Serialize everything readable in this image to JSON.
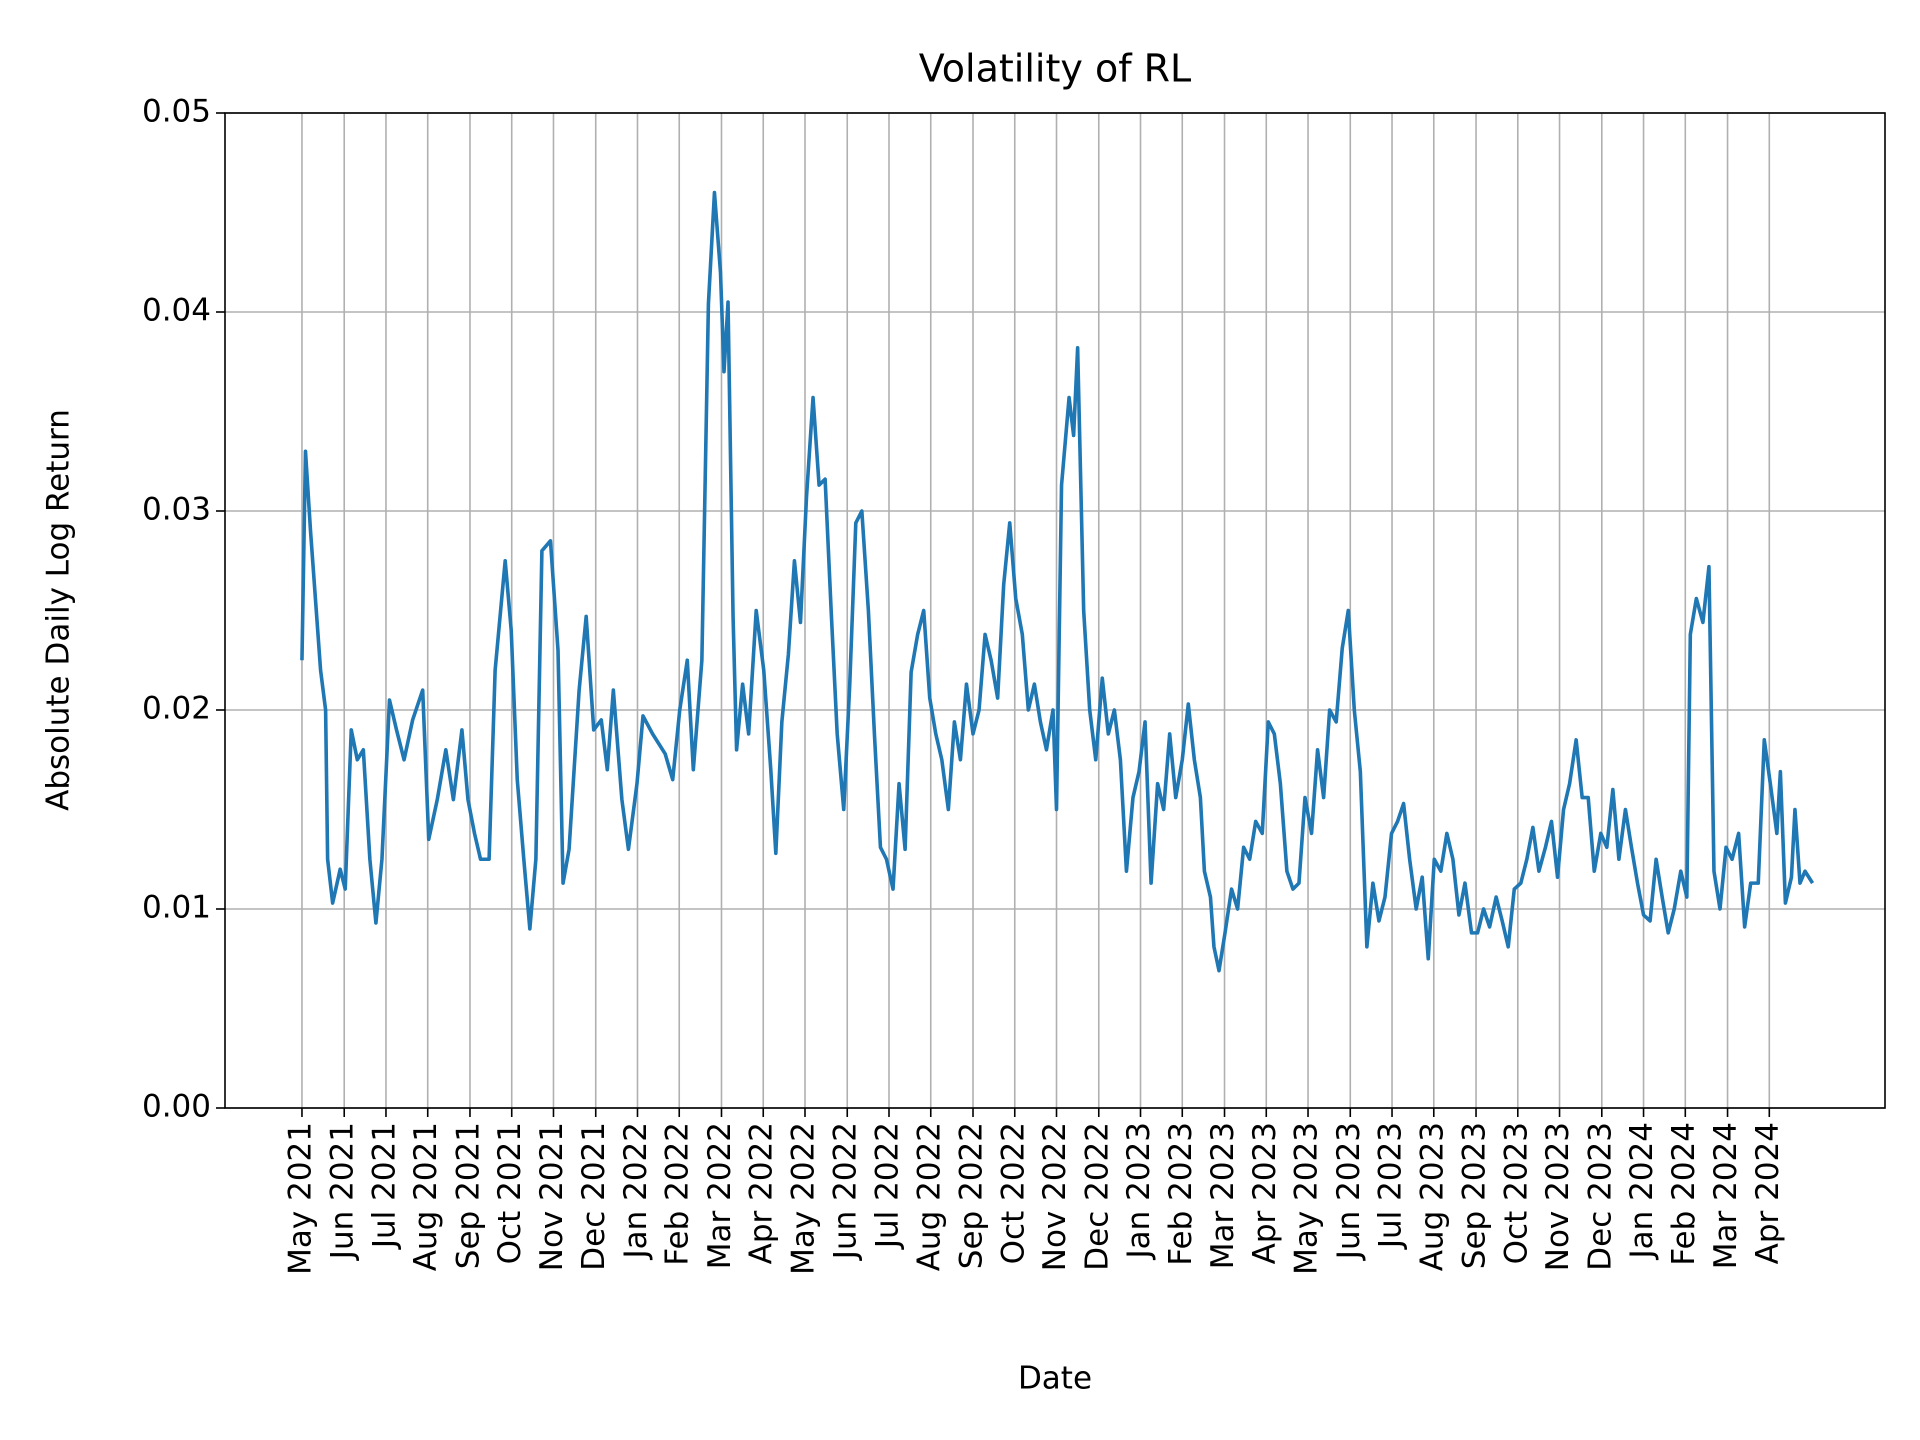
{
  "chart_data": {
    "type": "line",
    "title": "Volatility of RL",
    "xlabel": "Date",
    "ylabel": "Absolute Daily Log Return",
    "color": "#1f77b4",
    "grid": true,
    "xlim": [
      2021.18,
      2024.48
    ],
    "ylim": [
      0,
      0.05
    ],
    "yticks": [
      {
        "value": 0,
        "label": "0.00"
      },
      0.01,
      0.02,
      0.03,
      0.04,
      0.05
    ],
    "xticks": [
      {
        "value": 2021.333,
        "label": "May 2021"
      },
      {
        "value": 2021.417,
        "label": "Jun 2021"
      },
      {
        "value": 2021.5,
        "label": "Jul 2021"
      },
      {
        "value": 2021.583,
        "label": "Aug 2021"
      },
      {
        "value": 2021.667,
        "label": "Sep 2021"
      },
      {
        "value": 2021.75,
        "label": "Oct 2021"
      },
      {
        "value": 2021.833,
        "label": "Nov 2021"
      },
      {
        "value": 2021.917,
        "label": "Dec 2021"
      },
      {
        "value": 2022,
        "label": "Jan 2022"
      },
      {
        "value": 2022.083,
        "label": "Feb 2022"
      },
      {
        "value": 2022.167,
        "label": "Mar 2022"
      },
      {
        "value": 2022.25,
        "label": "Apr 2022"
      },
      {
        "value": 2022.333,
        "label": "May 2022"
      },
      {
        "value": 2022.417,
        "label": "Jun 2022"
      },
      {
        "value": 2022.5,
        "label": "Jul 2022"
      },
      {
        "value": 2022.583,
        "label": "Aug 2022"
      },
      {
        "value": 2022.667,
        "label": "Sep 2022"
      },
      {
        "value": 2022.75,
        "label": "Oct 2022"
      },
      {
        "value": 2022.833,
        "label": "Nov 2022"
      },
      {
        "value": 2022.917,
        "label": "Dec 2022"
      },
      {
        "value": 2023,
        "label": "Jan 2023"
      },
      {
        "value": 2023.083,
        "label": "Feb 2023"
      },
      {
        "value": 2023.167,
        "label": "Mar 2023"
      },
      {
        "value": 2023.25,
        "label": "Apr 2023"
      },
      {
        "value": 2023.333,
        "label": "May 2023"
      },
      {
        "value": 2023.417,
        "label": "Jun 2023"
      },
      {
        "value": 2023.5,
        "label": "Jul 2023"
      },
      {
        "value": 2023.583,
        "label": "Aug 2023"
      },
      {
        "value": 2023.667,
        "label": "Sep 2023"
      },
      {
        "value": 2023.75,
        "label": "Oct 2023"
      },
      {
        "value": 2023.833,
        "label": "Nov 2023"
      },
      {
        "value": 2023.917,
        "label": "Dec 2023"
      },
      {
        "value": 2024,
        "label": "Jan 2024"
      },
      {
        "value": 2024.083,
        "label": "Feb 2024"
      },
      {
        "value": 2024.167,
        "label": "Mar 2024"
      },
      {
        "value": 2024.25,
        "label": "Apr 2024"
      }
    ],
    "x": [
      2021.333,
      2021.34,
      2021.35,
      2021.36,
      2021.37,
      2021.38,
      2021.384,
      2021.394,
      2021.409,
      2021.419,
      2021.431,
      2021.443,
      2021.455,
      2021.468,
      2021.48,
      2021.492,
      2021.507,
      2021.521,
      2021.536,
      2021.553,
      2021.573,
      2021.585,
      2021.602,
      2021.619,
      2021.634,
      2021.651,
      2021.663,
      2021.676,
      2021.688,
      2021.705,
      2021.717,
      2021.737,
      2021.749,
      2021.761,
      2021.774,
      2021.786,
      2021.798,
      2021.81,
      2021.827,
      2021.842,
      2021.852,
      2021.864,
      2021.884,
      2021.898,
      2021.913,
      2021.928,
      2021.94,
      2021.952,
      2021.969,
      2021.982,
      2021.999,
      2022.011,
      2022.03,
      2022.055,
      2022.07,
      2022.084,
      2022.099,
      2022.111,
      2022.128,
      2022.141,
      2022.153,
      2022.165,
      2022.172,
      2022.18,
      2022.19,
      2022.197,
      2022.209,
      2022.221,
      2022.236,
      2022.251,
      2022.265,
      2022.275,
      2022.287,
      2022.3,
      2022.312,
      2022.324,
      2022.336,
      2022.349,
      2022.361,
      2022.373,
      2022.385,
      2022.397,
      2022.41,
      2022.422,
      2022.434,
      2022.446,
      2022.459,
      2022.471,
      2022.483,
      2022.495,
      2022.508,
      2022.52,
      2022.532,
      2022.544,
      2022.557,
      2022.569,
      2022.581,
      2022.593,
      2022.605,
      2022.618,
      2022.63,
      2022.642,
      2022.654,
      2022.667,
      2022.679,
      2022.691,
      2022.703,
      2022.716,
      2022.728,
      2022.74,
      2022.752,
      2022.765,
      2022.777,
      2022.789,
      2022.801,
      2022.813,
      2022.826,
      2022.833,
      2022.843,
      2022.858,
      2022.867,
      2022.875,
      2022.887,
      2022.899,
      2022.911,
      2022.924,
      2022.936,
      2022.948,
      2022.96,
      2022.972,
      2022.985,
      2022.997,
      2023.009,
      2023.021,
      2023.034,
      2023.046,
      2023.058,
      2023.07,
      2023.083,
      2023.095,
      2023.107,
      2023.119,
      2023.127,
      2023.139,
      2023.146,
      2023.156,
      2023.168,
      2023.181,
      2023.193,
      2023.205,
      2023.217,
      2023.229,
      2023.242,
      2023.254,
      2023.266,
      2023.278,
      2023.291,
      2023.303,
      2023.315,
      2023.327,
      2023.34,
      2023.352,
      2023.364,
      2023.376,
      2023.389,
      2023.401,
      2023.413,
      2023.425,
      2023.437,
      2023.45,
      2023.462,
      2023.474,
      2023.486,
      2023.499,
      2023.511,
      2023.523,
      2023.535,
      2023.548,
      2023.56,
      2023.572,
      2023.584,
      2023.597,
      2023.609,
      2023.621,
      2023.633,
      2023.645,
      2023.658,
      2023.67,
      2023.682,
      2023.694,
      2023.707,
      2023.719,
      2023.731,
      2023.743,
      2023.756,
      2023.768,
      2023.78,
      2023.792,
      2023.805,
      2023.817,
      2023.829,
      2023.841,
      2023.853,
      2023.866,
      2023.878,
      2023.89,
      2023.902,
      2023.915,
      2023.927,
      2023.939,
      2023.951,
      2023.964,
      2023.976,
      2023.988,
      2024.0,
      2024.013,
      2024.025,
      2024.037,
      2024.049,
      2024.061,
      2024.074,
      2024.086,
      2024.093,
      2024.105,
      2024.118,
      2024.13,
      2024.14,
      2024.152,
      2024.164,
      2024.176,
      2024.189,
      2024.201,
      2024.213,
      2024.228,
      2024.24,
      2024.252,
      2024.265,
      2024.272,
      2024.282,
      2024.294,
      2024.301,
      2024.311,
      2024.321,
      2024.336
    ],
    "values": [
      0.0225,
      0.033,
      0.029,
      0.0255,
      0.022,
      0.02,
      0.0125,
      0.0103,
      0.012,
      0.011,
      0.019,
      0.0175,
      0.018,
      0.0125,
      0.0093,
      0.0125,
      0.0205,
      0.019,
      0.0175,
      0.0195,
      0.021,
      0.0135,
      0.0155,
      0.018,
      0.0155,
      0.019,
      0.0155,
      0.0138,
      0.0125,
      0.0125,
      0.022,
      0.0275,
      0.024,
      0.0165,
      0.0125,
      0.009,
      0.0125,
      0.028,
      0.0285,
      0.023,
      0.0113,
      0.013,
      0.021,
      0.0247,
      0.019,
      0.0195,
      0.017,
      0.021,
      0.0155,
      0.013,
      0.0163,
      0.0197,
      0.0188,
      0.0178,
      0.0165,
      0.02,
      0.0225,
      0.017,
      0.0225,
      0.0404,
      0.046,
      0.042,
      0.037,
      0.0405,
      0.0247,
      0.018,
      0.0213,
      0.0188,
      0.025,
      0.022,
      0.017,
      0.0128,
      0.0194,
      0.0228,
      0.0275,
      0.0244,
      0.0307,
      0.0357,
      0.0313,
      0.0316,
      0.025,
      0.0188,
      0.015,
      0.0213,
      0.0294,
      0.03,
      0.025,
      0.0188,
      0.0131,
      0.0125,
      0.011,
      0.0163,
      0.013,
      0.0219,
      0.0238,
      0.025,
      0.0206,
      0.0188,
      0.0175,
      0.015,
      0.0194,
      0.0175,
      0.0213,
      0.0188,
      0.02,
      0.0238,
      0.0225,
      0.0206,
      0.0263,
      0.0294,
      0.0256,
      0.0238,
      0.02,
      0.0213,
      0.0194,
      0.018,
      0.02,
      0.015,
      0.0313,
      0.0357,
      0.0338,
      0.0382,
      0.025,
      0.02,
      0.0175,
      0.0216,
      0.0188,
      0.02,
      0.0175,
      0.0119,
      0.0156,
      0.0169,
      0.0194,
      0.0113,
      0.0163,
      0.015,
      0.0188,
      0.0156,
      0.0175,
      0.0203,
      0.0175,
      0.0156,
      0.0119,
      0.0106,
      0.0081,
      0.0069,
      0.0088,
      0.011,
      0.01,
      0.0131,
      0.0125,
      0.0144,
      0.0138,
      0.0194,
      0.0188,
      0.0163,
      0.0119,
      0.011,
      0.0113,
      0.0156,
      0.0138,
      0.018,
      0.0156,
      0.02,
      0.0194,
      0.0231,
      0.025,
      0.02,
      0.0169,
      0.0081,
      0.0113,
      0.0094,
      0.0106,
      0.0138,
      0.0144,
      0.0153,
      0.0125,
      0.01,
      0.0116,
      0.0075,
      0.0125,
      0.0119,
      0.0138,
      0.0125,
      0.0097,
      0.0113,
      0.0088,
      0.0088,
      0.01,
      0.0091,
      0.0106,
      0.0094,
      0.0081,
      0.011,
      0.0113,
      0.0125,
      0.0141,
      0.0119,
      0.0131,
      0.0144,
      0.0116,
      0.015,
      0.0163,
      0.0185,
      0.0156,
      0.0156,
      0.0119,
      0.0138,
      0.0131,
      0.016,
      0.0125,
      0.015,
      0.0131,
      0.0113,
      0.0097,
      0.0094,
      0.0125,
      0.0106,
      0.0088,
      0.01,
      0.0119,
      0.0106,
      0.0238,
      0.0256,
      0.0244,
      0.0272,
      0.0119,
      0.01,
      0.0131,
      0.0125,
      0.0138,
      0.0091,
      0.0113,
      0.0113,
      0.0185,
      0.0163,
      0.0138,
      0.0169,
      0.0103,
      0.0116,
      0.015,
      0.0113,
      0.0119,
      0.0113
    ]
  }
}
